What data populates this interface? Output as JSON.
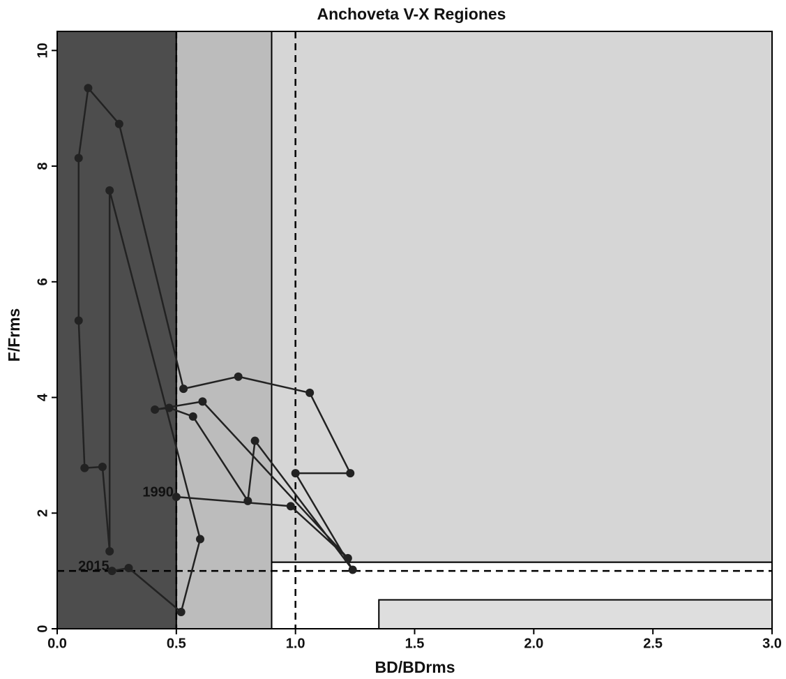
{
  "chart_data": {
    "type": "line",
    "title": "Anchoveta V-X Regiones",
    "x_label": "BD/BDrms",
    "y_label": "F/Frms",
    "xlim": [
      0,
      3
    ],
    "ylim": [
      0,
      10.33
    ],
    "xticks": [
      {
        "value": 0,
        "label": "0.0"
      },
      {
        "value": 0.5,
        "label": "0.5"
      },
      {
        "value": 1,
        "label": "1.0"
      },
      {
        "value": 1.5,
        "label": "1.5"
      },
      {
        "value": 2,
        "label": "2.0"
      },
      {
        "value": 2.5,
        "label": "2.5"
      },
      {
        "value": 3,
        "label": "3.0"
      }
    ],
    "yticks": [
      0,
      2,
      4,
      6,
      8,
      10
    ],
    "zones": [
      {
        "x": [
          0,
          0.5
        ],
        "y": [
          0,
          10.33
        ],
        "color": "#4d4d4d"
      },
      {
        "x": [
          0.5,
          0.9
        ],
        "y": [
          0,
          10.33
        ],
        "color": "#bcbcbc"
      },
      {
        "x": [
          0.9,
          3
        ],
        "y": [
          1.15,
          10.33
        ],
        "color": "#d6d6d6"
      },
      {
        "x": [
          0.9,
          3
        ],
        "y": [
          0,
          1.15
        ],
        "color": "#ffffff"
      },
      {
        "x": [
          1.35,
          3
        ],
        "y": [
          0,
          0.5
        ],
        "color": "#dedede"
      }
    ],
    "reference_lines": {
      "x": [
        0.5,
        1
      ],
      "y": [
        1
      ]
    },
    "color": "#222222",
    "x": [
      0.5,
      0.98,
      1.22,
      0.61,
      0.41,
      0.47,
      0.57,
      0.8,
      0.83,
      1.24,
      1.0,
      1.23,
      1.06,
      0.76,
      0.53,
      0.26,
      0.13,
      0.09,
      0.09,
      0.115,
      0.19,
      0.22,
      0.22,
      0.6,
      0.52,
      0.3,
      0.23
    ],
    "values": [
      2.28,
      2.12,
      1.22,
      3.93,
      3.79,
      3.82,
      3.67,
      2.21,
      3.25,
      1.02,
      2.69,
      2.69,
      4.08,
      4.36,
      4.15,
      8.73,
      9.35,
      8.14,
      5.33,
      2.78,
      2.8,
      1.34,
      7.58,
      1.55,
      0.29,
      1.05,
      1.0
    ],
    "point_labels": [
      "1990",
      null,
      null,
      null,
      null,
      null,
      null,
      null,
      null,
      null,
      null,
      null,
      null,
      null,
      null,
      null,
      null,
      null,
      null,
      null,
      null,
      null,
      null,
      null,
      null,
      null,
      "2015"
    ]
  }
}
